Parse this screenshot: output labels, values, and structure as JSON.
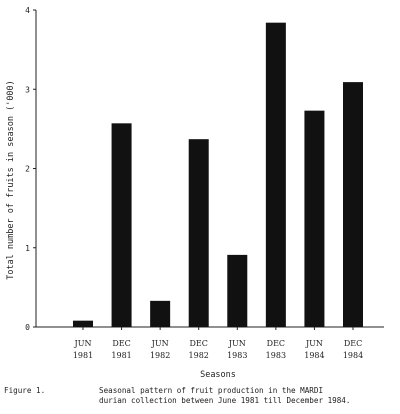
{
  "chart_data": {
    "type": "bar",
    "title": "",
    "ylabel": "Total number of fruits in season ('000)",
    "xlabel": "Seasons",
    "ylim": [
      0,
      4
    ],
    "yticks": [
      "0",
      "1",
      "2",
      "3",
      "4"
    ],
    "grid": false,
    "categories": [
      [
        "JUN",
        "1981"
      ],
      [
        "DEC",
        "1981"
      ],
      [
        "JUN",
        "1982"
      ],
      [
        "DEC",
        "1982"
      ],
      [
        "JUN",
        "1983"
      ],
      [
        "DEC",
        "1983"
      ],
      [
        "JUN",
        "1984"
      ],
      [
        "DEC",
        "1984"
      ]
    ],
    "values": [
      0.08,
      2.57,
      0.33,
      2.37,
      0.91,
      3.84,
      2.73,
      3.09
    ],
    "bar_color": "#111111"
  },
  "caption": {
    "label": "Figure 1.",
    "text": "Seasonal pattern of fruit production in the MARDI\ndurian collection between June 1981 till December 1984."
  }
}
